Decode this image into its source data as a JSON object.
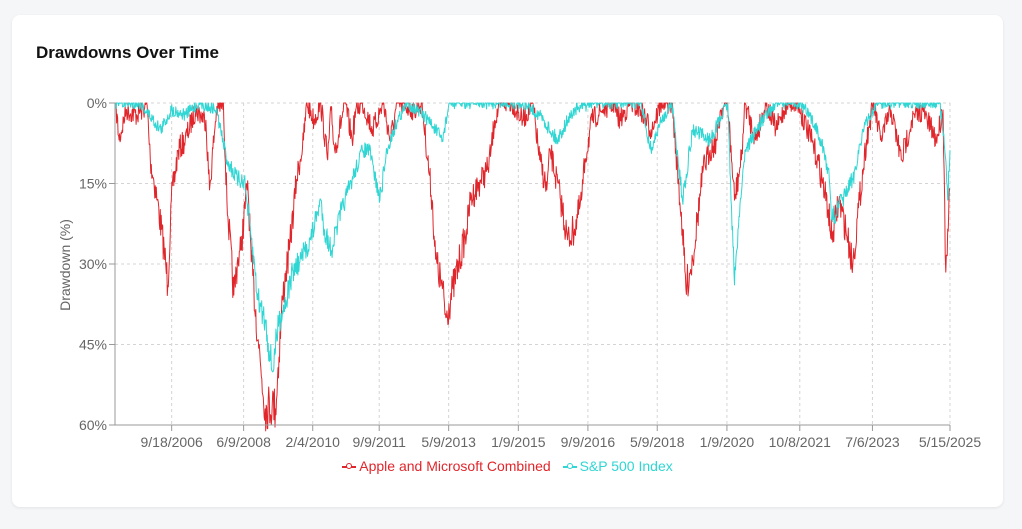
{
  "card": {
    "title": "Drawdowns Over Time"
  },
  "chart_data": {
    "type": "line",
    "title": "Drawdowns Over Time",
    "xlabel": "",
    "ylabel": "Drawdown (%)",
    "xlim": [
      "2005-05-10",
      "2025-05-15"
    ],
    "ylim": [
      0,
      60
    ],
    "y_inverted": true,
    "yticks": [
      0,
      15,
      30,
      45,
      60
    ],
    "ytick_labels": [
      "0%",
      "15%",
      "30%",
      "45%",
      "60%"
    ],
    "xticks": [
      "2006-09-18",
      "2008-06-09",
      "2010-02-04",
      "2011-09-09",
      "2013-05-09",
      "2015-01-09",
      "2016-09-09",
      "2018-05-09",
      "2020-01-09",
      "2021-10-08",
      "2023-07-06",
      "2025-05-15"
    ],
    "xtick_labels": [
      "9/18/2006",
      "6/9/2008",
      "2/4/2010",
      "9/9/2011",
      "5/9/2013",
      "1/9/2015",
      "9/9/2016",
      "5/9/2018",
      "1/9/2020",
      "10/8/2021",
      "7/6/2023",
      "5/15/2025"
    ],
    "grid": true,
    "legend": "bottom",
    "series": [
      {
        "name": "Apple and Microsoft Combined",
        "color": "#e0262b",
        "points": [
          [
            "2005-05",
            0
          ],
          [
            "2005-06",
            6.9
          ],
          [
            "2005-08",
            1.3
          ],
          [
            "2005-11",
            2.2
          ],
          [
            "2006-02",
            0.4
          ],
          [
            "2006-03",
            10.6
          ],
          [
            "2006-05",
            18.1
          ],
          [
            "2006-07",
            27.4
          ],
          [
            "2006-08",
            34
          ],
          [
            "2006-09",
            18.1
          ],
          [
            "2006-11",
            8.8
          ],
          [
            "2007-01",
            6.9
          ],
          [
            "2007-04",
            1.3
          ],
          [
            "2007-07",
            3.2
          ],
          [
            "2007-08",
            16.2
          ],
          [
            "2007-10",
            1.3
          ],
          [
            "2007-12",
            0
          ],
          [
            "2008-01",
            18.1
          ],
          [
            "2008-03",
            35.8
          ],
          [
            "2008-04",
            29.6
          ],
          [
            "2008-05",
            27.4
          ],
          [
            "2008-07",
            14.5
          ],
          [
            "2008-08",
            29.6
          ],
          [
            "2008-10",
            44.1
          ],
          [
            "2008-11",
            51.4
          ],
          [
            "2008-12",
            57
          ],
          [
            "2009-02",
            56
          ],
          [
            "2009-03",
            57
          ],
          [
            "2009-05",
            36.7
          ],
          [
            "2009-06",
            31.3
          ],
          [
            "2009-07",
            27.4
          ],
          [
            "2009-09",
            14.3
          ],
          [
            "2009-11",
            6.9
          ],
          [
            "2009-12",
            0
          ],
          [
            "2010-02",
            3.2
          ],
          [
            "2010-04",
            0
          ],
          [
            "2010-06",
            10.6
          ],
          [
            "2010-07",
            1.3
          ],
          [
            "2010-08",
            8.8
          ],
          [
            "2010-11",
            0
          ],
          [
            "2011-01",
            6.9
          ],
          [
            "2011-02",
            1.3
          ],
          [
            "2011-04",
            0
          ],
          [
            "2011-07",
            5
          ],
          [
            "2011-10",
            0
          ],
          [
            "2011-12",
            6.9
          ],
          [
            "2012-02",
            0
          ],
          [
            "2012-07",
            1.3
          ],
          [
            "2012-09",
            0
          ],
          [
            "2012-12",
            18.1
          ],
          [
            "2013-01",
            29.1
          ],
          [
            "2013-03",
            34.6
          ],
          [
            "2013-04",
            40
          ],
          [
            "2013-06",
            34.6
          ],
          [
            "2013-08",
            29.1
          ],
          [
            "2013-10",
            23.5
          ],
          [
            "2013-11",
            18.1
          ],
          [
            "2014-02",
            14.3
          ],
          [
            "2014-04",
            12.4
          ],
          [
            "2014-05",
            8.8
          ],
          [
            "2014-06",
            3.2
          ],
          [
            "2014-08",
            0
          ],
          [
            "2014-11",
            0
          ],
          [
            "2015-02",
            3.2
          ],
          [
            "2015-05",
            0
          ],
          [
            "2015-07",
            10.6
          ],
          [
            "2015-09",
            16.2
          ],
          [
            "2015-10",
            8.8
          ],
          [
            "2016-01",
            18.1
          ],
          [
            "2016-03",
            25.5
          ],
          [
            "2016-05",
            23.5
          ],
          [
            "2016-07",
            18.1
          ],
          [
            "2016-08",
            10.6
          ],
          [
            "2016-10",
            3.2
          ],
          [
            "2017-01",
            1.3
          ],
          [
            "2017-04",
            0
          ],
          [
            "2017-06",
            3.2
          ],
          [
            "2017-09",
            0
          ],
          [
            "2017-12",
            1.3
          ],
          [
            "2018-03",
            5
          ],
          [
            "2018-06",
            0
          ],
          [
            "2018-09",
            0
          ],
          [
            "2018-12",
            23.5
          ],
          [
            "2019-01",
            34.6
          ],
          [
            "2019-03",
            29.1
          ],
          [
            "2019-06",
            12.4
          ],
          [
            "2019-08",
            8.8
          ],
          [
            "2019-10",
            6.9
          ],
          [
            "2019-11",
            1.3
          ],
          [
            "2020-01",
            0
          ],
          [
            "2020-03",
            18.1
          ],
          [
            "2020-05",
            10.6
          ],
          [
            "2020-06",
            0
          ],
          [
            "2020-09",
            6.9
          ],
          [
            "2020-12",
            0
          ],
          [
            "2021-03",
            5
          ],
          [
            "2021-06",
            0
          ],
          [
            "2021-09",
            0
          ],
          [
            "2021-12",
            5
          ],
          [
            "2022-03",
            10.6
          ],
          [
            "2022-06",
            19.9
          ],
          [
            "2022-07",
            25.5
          ],
          [
            "2022-09",
            18.1
          ],
          [
            "2022-11",
            23.5
          ],
          [
            "2023-01",
            30
          ],
          [
            "2023-03",
            18.1
          ],
          [
            "2023-05",
            6.9
          ],
          [
            "2023-07",
            0
          ],
          [
            "2023-09",
            6.9
          ],
          [
            "2023-12",
            1.3
          ],
          [
            "2024-03",
            10.6
          ],
          [
            "2024-06",
            3.2
          ],
          [
            "2024-09",
            1.3
          ],
          [
            "2025-01",
            6.9
          ],
          [
            "2025-03",
            1.3
          ],
          [
            "2025-04-08",
            31.5
          ],
          [
            "2025-04-25",
            23.5
          ],
          [
            "2025-05-15",
            16
          ]
        ]
      },
      {
        "name": "S&P 500 Index",
        "color": "#2fd6d3",
        "points": [
          [
            "2005-05",
            0
          ],
          [
            "2005-12",
            0
          ],
          [
            "2006-06",
            5
          ],
          [
            "2006-09",
            1.3
          ],
          [
            "2007-01",
            2.2
          ],
          [
            "2007-05",
            0
          ],
          [
            "2007-10",
            1.3
          ],
          [
            "2008-01",
            10.6
          ],
          [
            "2008-04",
            14.3
          ],
          [
            "2008-06",
            14.3
          ],
          [
            "2008-08",
            25.5
          ],
          [
            "2008-10",
            36.7
          ],
          [
            "2008-12",
            40.4
          ],
          [
            "2009-02",
            50
          ],
          [
            "2009-04",
            40.4
          ],
          [
            "2009-06",
            36.7
          ],
          [
            "2009-08",
            31.3
          ],
          [
            "2009-10",
            29.6
          ],
          [
            "2010-01",
            25.5
          ],
          [
            "2010-04",
            18.1
          ],
          [
            "2010-05",
            23.5
          ],
          [
            "2010-07",
            27.4
          ],
          [
            "2010-10",
            19.9
          ],
          [
            "2011-01",
            14.3
          ],
          [
            "2011-04",
            8.8
          ],
          [
            "2011-06",
            8.8
          ],
          [
            "2011-09",
            18.1
          ],
          [
            "2011-11",
            8.8
          ],
          [
            "2012-02",
            3.2
          ],
          [
            "2012-05",
            0
          ],
          [
            "2012-11",
            3.2
          ],
          [
            "2013-03",
            6.9
          ],
          [
            "2013-05",
            0
          ],
          [
            "2015-02",
            0
          ],
          [
            "2015-07",
            2.2
          ],
          [
            "2015-12",
            6.9
          ],
          [
            "2016-03",
            3.2
          ],
          [
            "2016-05",
            1.3
          ],
          [
            "2016-10",
            0
          ],
          [
            "2017-12",
            0
          ],
          [
            "2018-03",
            8.8
          ],
          [
            "2018-06",
            3.2
          ],
          [
            "2018-09",
            0
          ],
          [
            "2018-12",
            18.1
          ],
          [
            "2019-03",
            5
          ],
          [
            "2019-08",
            6.9
          ],
          [
            "2020-01",
            0
          ],
          [
            "2020-03",
            33.9
          ],
          [
            "2020-04",
            23.5
          ],
          [
            "2020-06",
            8.8
          ],
          [
            "2020-11",
            3.2
          ],
          [
            "2021-03",
            0
          ],
          [
            "2021-10",
            0
          ],
          [
            "2022-03",
            5
          ],
          [
            "2022-06",
            12.4
          ],
          [
            "2022-07",
            21.8
          ],
          [
            "2022-10",
            18.1
          ],
          [
            "2023-01",
            14.3
          ],
          [
            "2023-04",
            5
          ],
          [
            "2023-08",
            0
          ],
          [
            "2025-02",
            0
          ],
          [
            "2025-04-08",
            10.6
          ],
          [
            "2025-04-25",
            18.1
          ],
          [
            "2025-05-15",
            8.8
          ]
        ]
      }
    ]
  }
}
